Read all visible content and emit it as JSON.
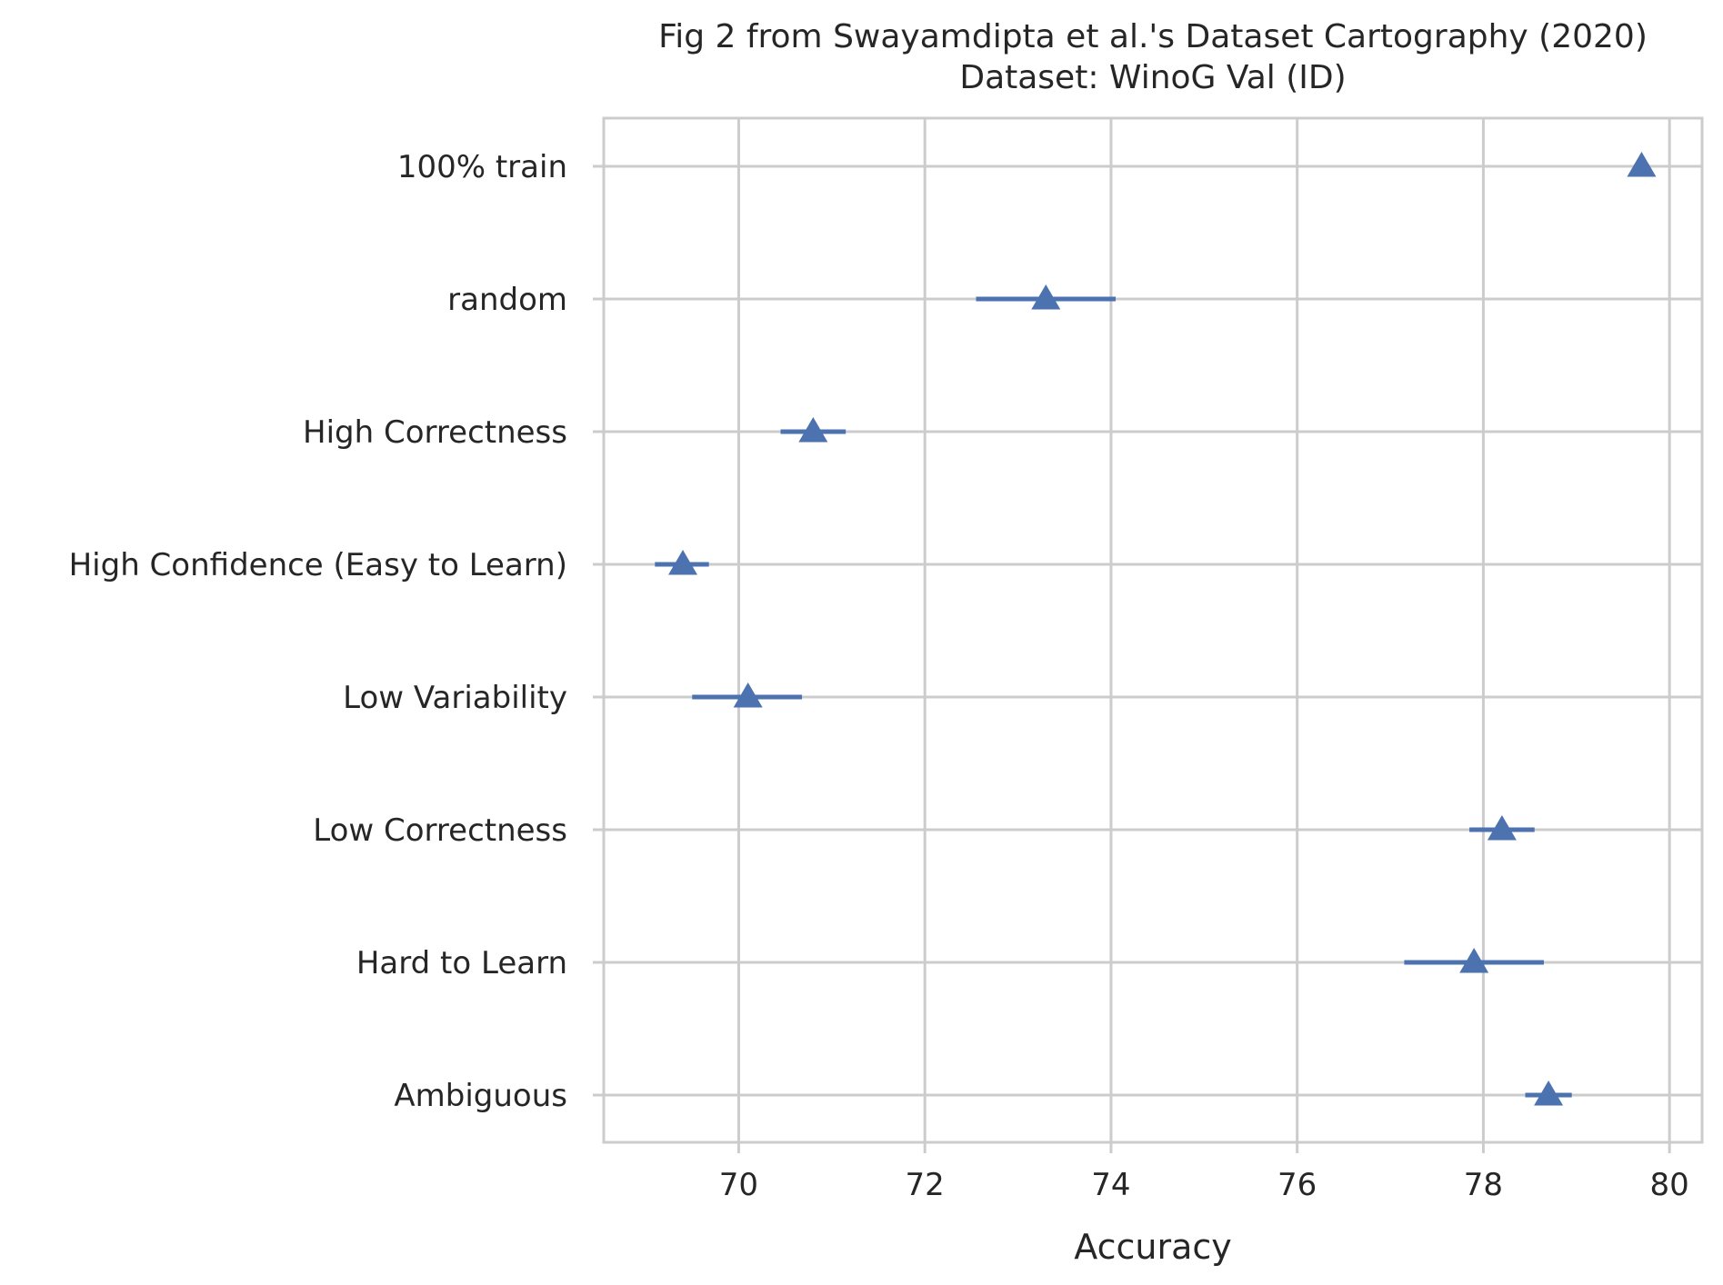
{
  "chart_data": {
    "type": "scatter",
    "title": "Fig 2 from Swayamdipta et al.'s Dataset Cartography (2020)",
    "subtitle": "Dataset: WinoG Val (ID)",
    "xlabel": "Accuracy",
    "ylabel": "",
    "xlim": [
      68.55,
      80.35
    ],
    "xticks": [
      70,
      72,
      74,
      76,
      78,
      80
    ],
    "grid": true,
    "marker": "triangle",
    "colors": {
      "series": "#4c72b0",
      "grid": "#cccccc",
      "text": "#262626"
    },
    "categories": [
      "100% train",
      "random",
      "High Correctness",
      "High Confidence (Easy to Learn)",
      "Low Variability",
      "Low Correctness",
      "Hard to Learn",
      "Ambiguous"
    ],
    "values": [
      79.7,
      73.3,
      70.8,
      69.4,
      70.1,
      78.2,
      77.9,
      78.7
    ],
    "err_low": [
      79.62,
      72.55,
      70.45,
      69.1,
      69.5,
      77.85,
      77.15,
      78.45
    ],
    "err_high": [
      79.78,
      74.05,
      71.15,
      69.68,
      70.68,
      78.55,
      78.65,
      78.95
    ]
  }
}
